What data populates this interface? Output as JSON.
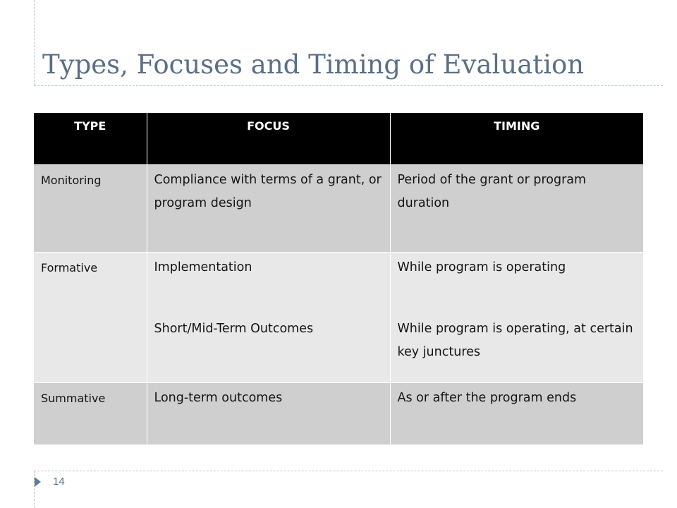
{
  "slide": {
    "title": "Types, Focuses and Timing of Evaluation",
    "page_number": "14"
  },
  "table": {
    "headers": [
      "TYPE",
      "FOCUS",
      "TIMING"
    ],
    "rows": [
      {
        "type": "Monitoring",
        "focus": [
          "Compliance with terms of a grant, or program design"
        ],
        "timing": [
          "Period of the grant or program duration"
        ]
      },
      {
        "type": "Formative",
        "focus": [
          "Implementation",
          "Short/Mid-Term Outcomes"
        ],
        "timing": [
          "While program is operating",
          "While program is operating, at certain key junctures"
        ]
      },
      {
        "type": "Summative",
        "focus": [
          "Long-term outcomes"
        ],
        "timing": [
          "As or after the program ends"
        ]
      }
    ]
  },
  "colors": {
    "title": "#5a6f86",
    "header_bg": "#000000",
    "row_dark": "#cfcfcf",
    "row_light": "#e8e8e8",
    "marker": "#5f7b94"
  },
  "icons": {
    "footer_marker": "triangle-right-icon"
  }
}
